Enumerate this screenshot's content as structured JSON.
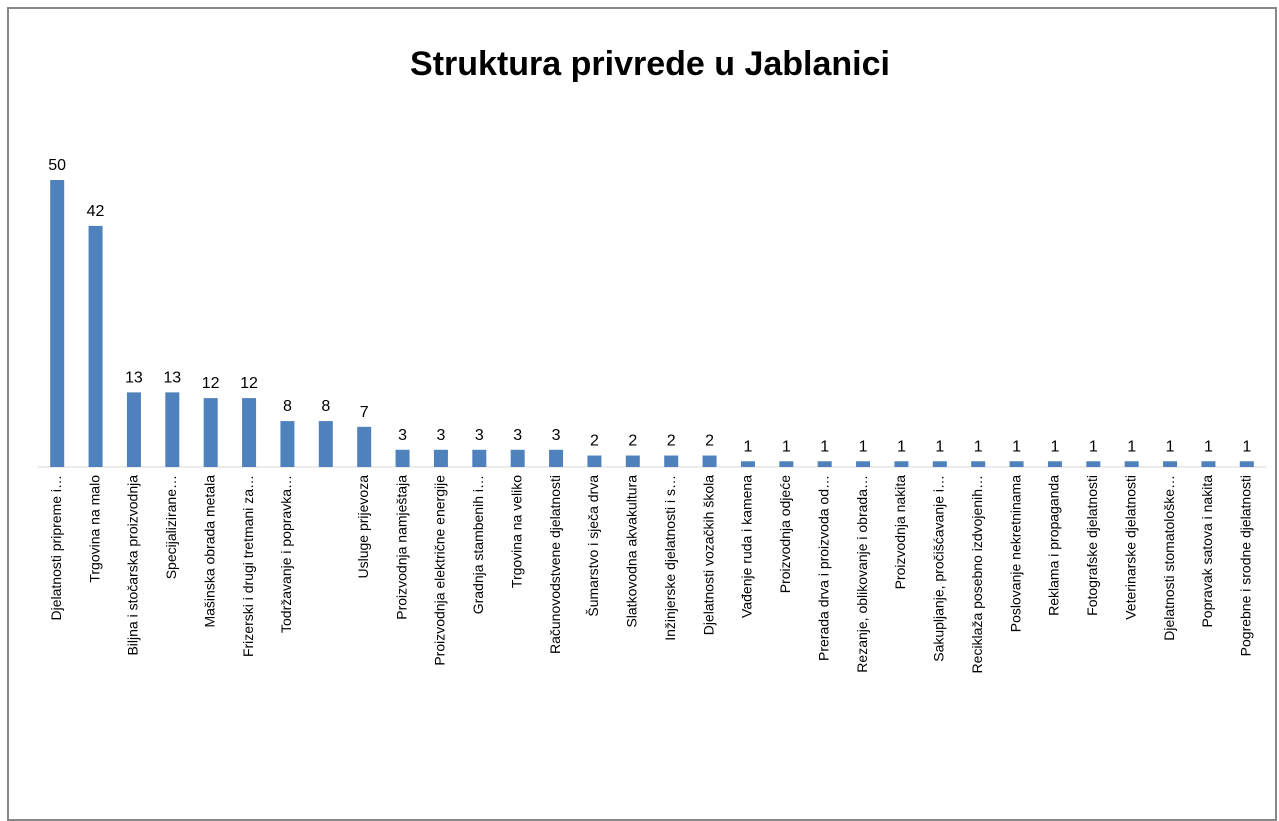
{
  "chart_data": {
    "type": "bar",
    "title": "Struktura privrede u Jablanici",
    "categories": [
      "Djelatnosti pripreme i…",
      "Trgovina na malo",
      "Biljna i stočarska proizvodnja",
      "Specijalizirane…",
      "Mašinska obrada metala",
      "Frizerski i drugi tretmani za…",
      "Todržavanje i popravka…",
      null,
      "Usluge prijevoza",
      "Proizvodnja namještaja",
      "Proizvodnja električne energije",
      "Gradnja stambenih i…",
      "Trgovina na veliko",
      "Računovodstvene djelatnosti",
      "Šumarstvo i sječa drva",
      "Slatkovodna akvakultura",
      "Inžinjerske djelatnosti i s…",
      "Djelatnosti vozačkih škola",
      "Vađenje ruda i kamena",
      "Proizvodnja odjeće",
      "Prerada drva i proizvoda od…",
      "Rezanje, oblikovanje i obrada…",
      "Proizvodnja nakita",
      "Sakupljanje, pročišćavanje i…",
      "Reciklaža posebno izdvojenih…",
      "Poslovanje nekretninama",
      "Reklama i propaganda",
      "Fotografske djelatnosti",
      "Veterinarske djelatnosti",
      "Djelatnosti stomatološke…",
      "Popravak satova i nakita",
      "Pogrebne i srodne djelatnosti"
    ],
    "values": [
      50,
      42,
      13,
      13,
      12,
      12,
      8,
      8,
      7,
      3,
      3,
      3,
      3,
      3,
      2,
      2,
      2,
      2,
      1,
      1,
      1,
      1,
      1,
      1,
      1,
      1,
      1,
      1,
      1,
      1,
      1,
      1
    ],
    "color": "#4f81bd"
  }
}
